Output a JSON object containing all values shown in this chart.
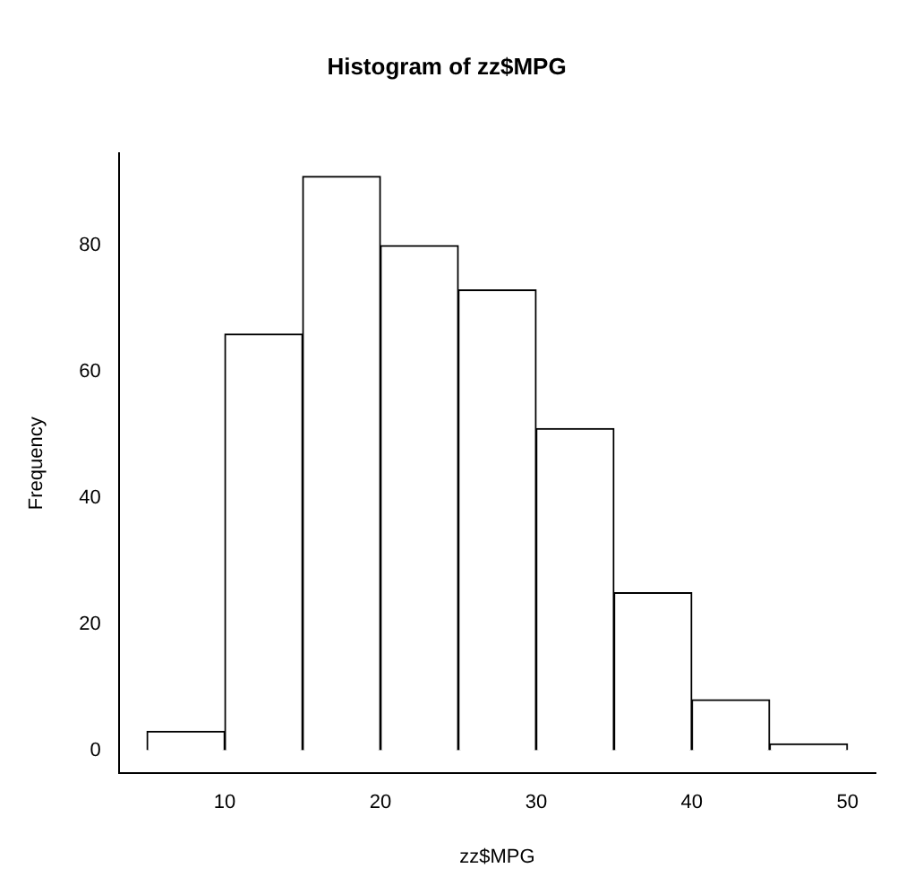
{
  "chart_data": {
    "type": "histogram",
    "title": "Histogram of zz$MPG",
    "xlabel": "zz$MPG",
    "ylabel": "Frequency",
    "bins": [
      5,
      10,
      15,
      20,
      25,
      30,
      35,
      40,
      45,
      50
    ],
    "values": [
      3,
      66,
      91,
      80,
      73,
      51,
      25,
      8,
      1
    ],
    "color": "#ffffff",
    "xlim": [
      3.2,
      51.8
    ],
    "ylim": [
      -3.64,
      94.64
    ],
    "xticks": [
      10,
      20,
      30,
      40,
      50
    ],
    "yticks": [
      0,
      20,
      40,
      60,
      80
    ]
  }
}
